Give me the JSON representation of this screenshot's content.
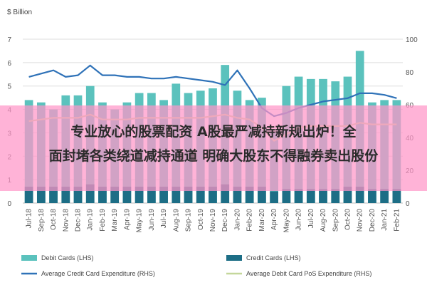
{
  "chart_data": {
    "type": "bar",
    "unit_label": "$ Billion",
    "categories": [
      "Jul-18",
      "Sep-18",
      "Oct-18",
      "Nov-18",
      "Dec-18",
      "Jan-19",
      "Feb-19",
      "Mar-19",
      "Apr-19",
      "May-19",
      "Jun-19",
      "Jul-19",
      "Aug-19",
      "Sep-19",
      "Oct-19",
      "Nov-19",
      "Dec-19",
      "Jan-20",
      "Feb-20",
      "Mar-20",
      "Apr-20",
      "May-20",
      "Jun-20",
      "Jul-20",
      "Aug-20",
      "Sep-20",
      "Oct-20",
      "Nov-20",
      "Dec-20",
      "Jan-21",
      "Feb-21"
    ],
    "left_axis": {
      "ylim": [
        0,
        7
      ],
      "ticks": [
        0,
        1,
        2,
        3,
        4,
        5,
        6,
        7
      ]
    },
    "right_axis": {
      "ylim": [
        0,
        100
      ],
      "ticks": [
        0,
        20,
        40,
        60,
        80,
        100
      ]
    },
    "series": [
      {
        "name": "Debit Cards (LHS)",
        "type": "bar",
        "axis": "left",
        "color": "#5bc2bd",
        "values": [
          4.4,
          4.3,
          4.0,
          4.6,
          4.6,
          5.0,
          4.3,
          4.0,
          4.3,
          4.7,
          4.7,
          4.4,
          5.1,
          4.7,
          4.8,
          4.9,
          5.9,
          4.8,
          4.4,
          4.5,
          3.0,
          5.0,
          5.4,
          5.3,
          5.3,
          5.2,
          5.4,
          6.5,
          4.3,
          4.4,
          4.4
        ]
      },
      {
        "name": "Credit Cards (LHS)",
        "type": "bar",
        "axis": "left",
        "color": "#1d6e86",
        "values": [
          0.7,
          0.7,
          0.7,
          0.7,
          0.7,
          0.8,
          0.7,
          0.7,
          0.7,
          0.7,
          0.7,
          0.7,
          0.7,
          0.7,
          0.7,
          0.7,
          0.8,
          0.7,
          0.7,
          0.7,
          0.5,
          0.6,
          0.6,
          0.6,
          0.6,
          0.6,
          0.7,
          0.7,
          0.6,
          0.6,
          0.6
        ]
      },
      {
        "name": "Average Credit Card Expenditure (RHS)",
        "type": "line",
        "axis": "right",
        "color": "#2f72b8",
        "values": [
          77,
          79,
          81,
          77,
          78,
          84,
          78,
          78,
          77,
          77,
          76,
          76,
          77,
          76,
          75,
          74,
          72,
          81,
          70,
          58,
          53,
          55,
          58,
          60,
          62,
          63,
          64,
          67,
          67,
          66,
          64
        ]
      },
      {
        "name": "Average Debit Card PoS Expenditure (RHS)",
        "type": "line",
        "axis": "right",
        "color": "#c4d79b",
        "values": [
          50,
          51,
          52,
          52,
          52,
          54,
          51,
          51,
          51,
          52,
          52,
          52,
          52,
          52,
          52,
          53,
          54,
          52,
          51,
          46,
          38,
          42,
          46,
          47,
          47,
          47,
          47,
          49,
          48,
          48,
          48
        ]
      }
    ],
    "grid": true,
    "legend_position": "bottom"
  },
  "overlay": {
    "lines": [
      "专业放心的股票配资 A股最严减持新规出炉！全",
      "面封堵各类绕道减持通道 明确大股东不得融券卖出股份"
    ]
  },
  "colors": {
    "overlay_bg": "#ff96c8",
    "grid": "#dddddd",
    "axis_text": "#555555"
  }
}
